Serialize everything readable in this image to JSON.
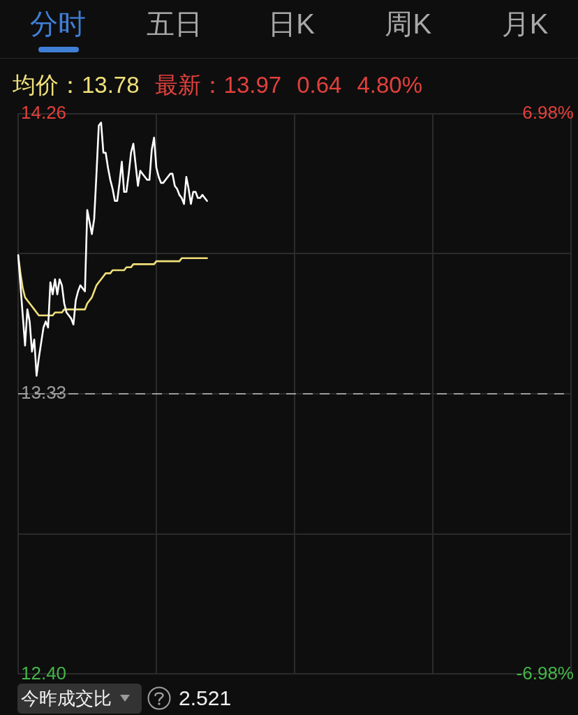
{
  "chart_data": {
    "type": "line",
    "categories": [
      null,
      null,
      null,
      null,
      null,
      null,
      null,
      null,
      null,
      null,
      null,
      null,
      null,
      null,
      null,
      null,
      null,
      null,
      null,
      null,
      null,
      null,
      null,
      null,
      null,
      null,
      null,
      null,
      null,
      null,
      null,
      null,
      null,
      null,
      null,
      null,
      null,
      null,
      null,
      null,
      null,
      null,
      null,
      null,
      null,
      null,
      null,
      null,
      null,
      null,
      null,
      null,
      null,
      null,
      null,
      null,
      null,
      null,
      null,
      null,
      null,
      null,
      null,
      null,
      null,
      null,
      null,
      null,
      null,
      null,
      null,
      null,
      null,
      null,
      null,
      null,
      null,
      null,
      null,
      null,
      null,
      null,
      null,
      null,
      null,
      null,
      null,
      null,
      null,
      null,
      null,
      null,
      null,
      null,
      null,
      null,
      null,
      null,
      null,
      null,
      null,
      null,
      null,
      null,
      null,
      null,
      null,
      null,
      null,
      null,
      null,
      null,
      null,
      null,
      null,
      null,
      null,
      null,
      null,
      null,
      null,
      null,
      null,
      null,
      null,
      null,
      null,
      null,
      null,
      null,
      null,
      null,
      null,
      null,
      null,
      null,
      null,
      null,
      null,
      null,
      null,
      null,
      null,
      null,
      null,
      null,
      null,
      null,
      null,
      null,
      null,
      null,
      null,
      null,
      null,
      null,
      null,
      null,
      null,
      null,
      null,
      null,
      null,
      null,
      null,
      null,
      null,
      null,
      null,
      null,
      null,
      null,
      null,
      null,
      null,
      null,
      null,
      null,
      null,
      null,
      null,
      null,
      null,
      null,
      null,
      null,
      null,
      null,
      null,
      null,
      null,
      null,
      null,
      null,
      null,
      null,
      null,
      null,
      null,
      null,
      null,
      null,
      null,
      null,
      null,
      null,
      null,
      null,
      null,
      null,
      null,
      null,
      null,
      null,
      null,
      null,
      null,
      null,
      null,
      null,
      null,
      null,
      null,
      null,
      null,
      null,
      null,
      null,
      null,
      null,
      null,
      null,
      null,
      null,
      null,
      null,
      null,
      null,
      null,
      null,
      null
    ],
    "series": [
      {
        "color": "#ffffff",
        "values": [
          13.79,
          13.69,
          13.59,
          13.49,
          13.61,
          13.57,
          13.47,
          13.51,
          13.39,
          13.45,
          13.5,
          13.55,
          13.57,
          13.55,
          13.7,
          13.66,
          13.71,
          13.66,
          13.71,
          13.69,
          13.63,
          13.6,
          13.59,
          13.58,
          13.56,
          13.64,
          13.67,
          13.69,
          13.68,
          13.67,
          13.94,
          13.9,
          13.86,
          13.91,
          14.06,
          14.22,
          14.23,
          14.13,
          14.13,
          14.08,
          14.04,
          14.01,
          13.97,
          13.97,
          14.03,
          14.1,
          14.0,
          14.0,
          14.06,
          14.13,
          14.16,
          14.09,
          14.02,
          14.07,
          14.06,
          14.05,
          14.04,
          14.04,
          14.14,
          14.18,
          14.08,
          14.05,
          14.03,
          14.03,
          14.04,
          14.05,
          14.06,
          14.06,
          14.02,
          14.01,
          13.99,
          13.98,
          13.96,
          14.05,
          14.01,
          13.96,
          14.0,
          14.0,
          13.98,
          13.98,
          13.99,
          13.98,
          13.97,
          null,
          null,
          null,
          null,
          null,
          null,
          null,
          null,
          null,
          null,
          null,
          null,
          null,
          null,
          null,
          null,
          null,
          null,
          null,
          null,
          null,
          null,
          null,
          null,
          null,
          null,
          null,
          null,
          null,
          null,
          null,
          null,
          null,
          null,
          null,
          null,
          null,
          null,
          null,
          null,
          null,
          null,
          null,
          null,
          null,
          null,
          null,
          null,
          null,
          null,
          null,
          null,
          null,
          null,
          null,
          null,
          null,
          null,
          null,
          null,
          null,
          null,
          null,
          null,
          null,
          null,
          null,
          null,
          null,
          null,
          null,
          null,
          null,
          null,
          null,
          null,
          null,
          null,
          null,
          null,
          null,
          null,
          null,
          null,
          null,
          null,
          null,
          null,
          null,
          null,
          null,
          null,
          null,
          null,
          null,
          null,
          null,
          null,
          null,
          null,
          null,
          null,
          null,
          null,
          null,
          null,
          null,
          null,
          null,
          null,
          null,
          null,
          null,
          null,
          null,
          null,
          null,
          null,
          null,
          null,
          null,
          null,
          null,
          null,
          null,
          null,
          null,
          null,
          null,
          null,
          null,
          null,
          null,
          null,
          null,
          null,
          null,
          null,
          null,
          null,
          null,
          null,
          null,
          null,
          null,
          null,
          null,
          null,
          null,
          null,
          null,
          null,
          null,
          null,
          null,
          null,
          null,
          null
        ]
      },
      {
        "color": "#f0e07a",
        "values": [
          13.79,
          13.73,
          13.68,
          13.65,
          13.64,
          13.63,
          13.62,
          13.61,
          13.6,
          13.59,
          13.59,
          13.59,
          13.59,
          13.59,
          13.59,
          13.59,
          13.6,
          13.6,
          13.6,
          13.6,
          13.61,
          13.61,
          13.61,
          13.61,
          13.61,
          13.61,
          13.61,
          13.61,
          13.61,
          13.61,
          13.63,
          13.64,
          13.65,
          13.67,
          13.69,
          13.7,
          13.71,
          13.72,
          13.73,
          13.73,
          13.73,
          13.74,
          13.74,
          13.74,
          13.74,
          13.74,
          13.74,
          13.75,
          13.75,
          13.75,
          13.76,
          13.76,
          13.76,
          13.76,
          13.76,
          13.76,
          13.76,
          13.76,
          13.76,
          13.76,
          13.77,
          13.77,
          13.77,
          13.77,
          13.77,
          13.77,
          13.77,
          13.77,
          13.77,
          13.77,
          13.77,
          13.78,
          13.78,
          13.78,
          13.78,
          13.78,
          13.78,
          13.78,
          13.78,
          13.78,
          13.78,
          13.78,
          13.78,
          null,
          null,
          null,
          null,
          null,
          null,
          null,
          null,
          null,
          null,
          null,
          null,
          null,
          null,
          null,
          null,
          null,
          null,
          null,
          null,
          null,
          null,
          null,
          null,
          null,
          null,
          null,
          null,
          null,
          null,
          null,
          null,
          null,
          null,
          null,
          null,
          null,
          null,
          null,
          null,
          null,
          null,
          null,
          null,
          null,
          null,
          null,
          null,
          null,
          null,
          null,
          null,
          null,
          null,
          null,
          null,
          null,
          null,
          null,
          null,
          null,
          null,
          null,
          null,
          null,
          null,
          null,
          null,
          null,
          null,
          null,
          null,
          null,
          null,
          null,
          null,
          null,
          null,
          null,
          null,
          null,
          null,
          null,
          null,
          null,
          null,
          null,
          null,
          null,
          null,
          null,
          null,
          null,
          null,
          null,
          null,
          null,
          null,
          null,
          null,
          null,
          null,
          null,
          null,
          null,
          null,
          null,
          null,
          null,
          null,
          null,
          null,
          null,
          null,
          null,
          null,
          null,
          null,
          null,
          null,
          null,
          null,
          null,
          null,
          null,
          null,
          null,
          null,
          null,
          null,
          null,
          null,
          null,
          null,
          null,
          null,
          null,
          null,
          null,
          null,
          null,
          null,
          null,
          null,
          null,
          null,
          null,
          null,
          null,
          null,
          null,
          null,
          null,
          null,
          null,
          null,
          null,
          null
        ]
      }
    ],
    "ylim": [
      12.4,
      14.26
    ],
    "yticks": [
      14.26,
      {
        "value": 13.795,
        "label": null
      },
      13.33,
      {
        "value": 12.865,
        "label": null
      },
      {
        "value": 12.4,
        "label": "12.40"
      }
    ],
    "y2lim": [
      -6.98,
      6.98
    ],
    "y2ticks": [
      {
        "value": 6.98,
        "label": "6.98%"
      },
      {
        "value": -6.98,
        "label": "-6.98%"
      }
    ],
    "grid": true,
    "ref_lines": [
      {
        "axis": "y",
        "value": 13.33,
        "color": "#9c9c9c",
        "line_style": "dashed"
      }
    ],
    "annotations": [
      "分时",
      "五日",
      "日K",
      "周K",
      "月K",
      "均价：13.78",
      "最新：13.97",
      "0.64",
      "4.80%",
      "今昨成交比",
      "2.521"
    ]
  }
}
